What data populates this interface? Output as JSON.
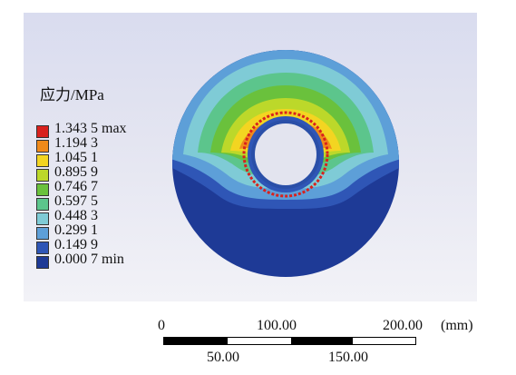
{
  "legend": {
    "title": "应力/MPa",
    "entries": [
      {
        "label": "1.343 5 max",
        "color": "#d8211d"
      },
      {
        "label": "1.194 3",
        "color": "#f08a1a"
      },
      {
        "label": "1.045 1",
        "color": "#f3d521"
      },
      {
        "label": "0.895 9",
        "color": "#bcd82a"
      },
      {
        "label": "0.746 7",
        "color": "#6ac13c"
      },
      {
        "label": "0.597 5",
        "color": "#5cc58c"
      },
      {
        "label": "0.448 3",
        "color": "#7fcbd6"
      },
      {
        "label": "0.299 1",
        "color": "#5d9fd8"
      },
      {
        "label": "0.149 9",
        "color": "#2f56b6"
      },
      {
        "label": "0.000 7 min",
        "color": "#1e3a96"
      }
    ]
  },
  "scale_bar": {
    "top_labels": [
      "0",
      "100.00",
      "200.00"
    ],
    "bottom_labels": [
      "50.00",
      "150.00"
    ],
    "unit": "(mm)"
  }
}
